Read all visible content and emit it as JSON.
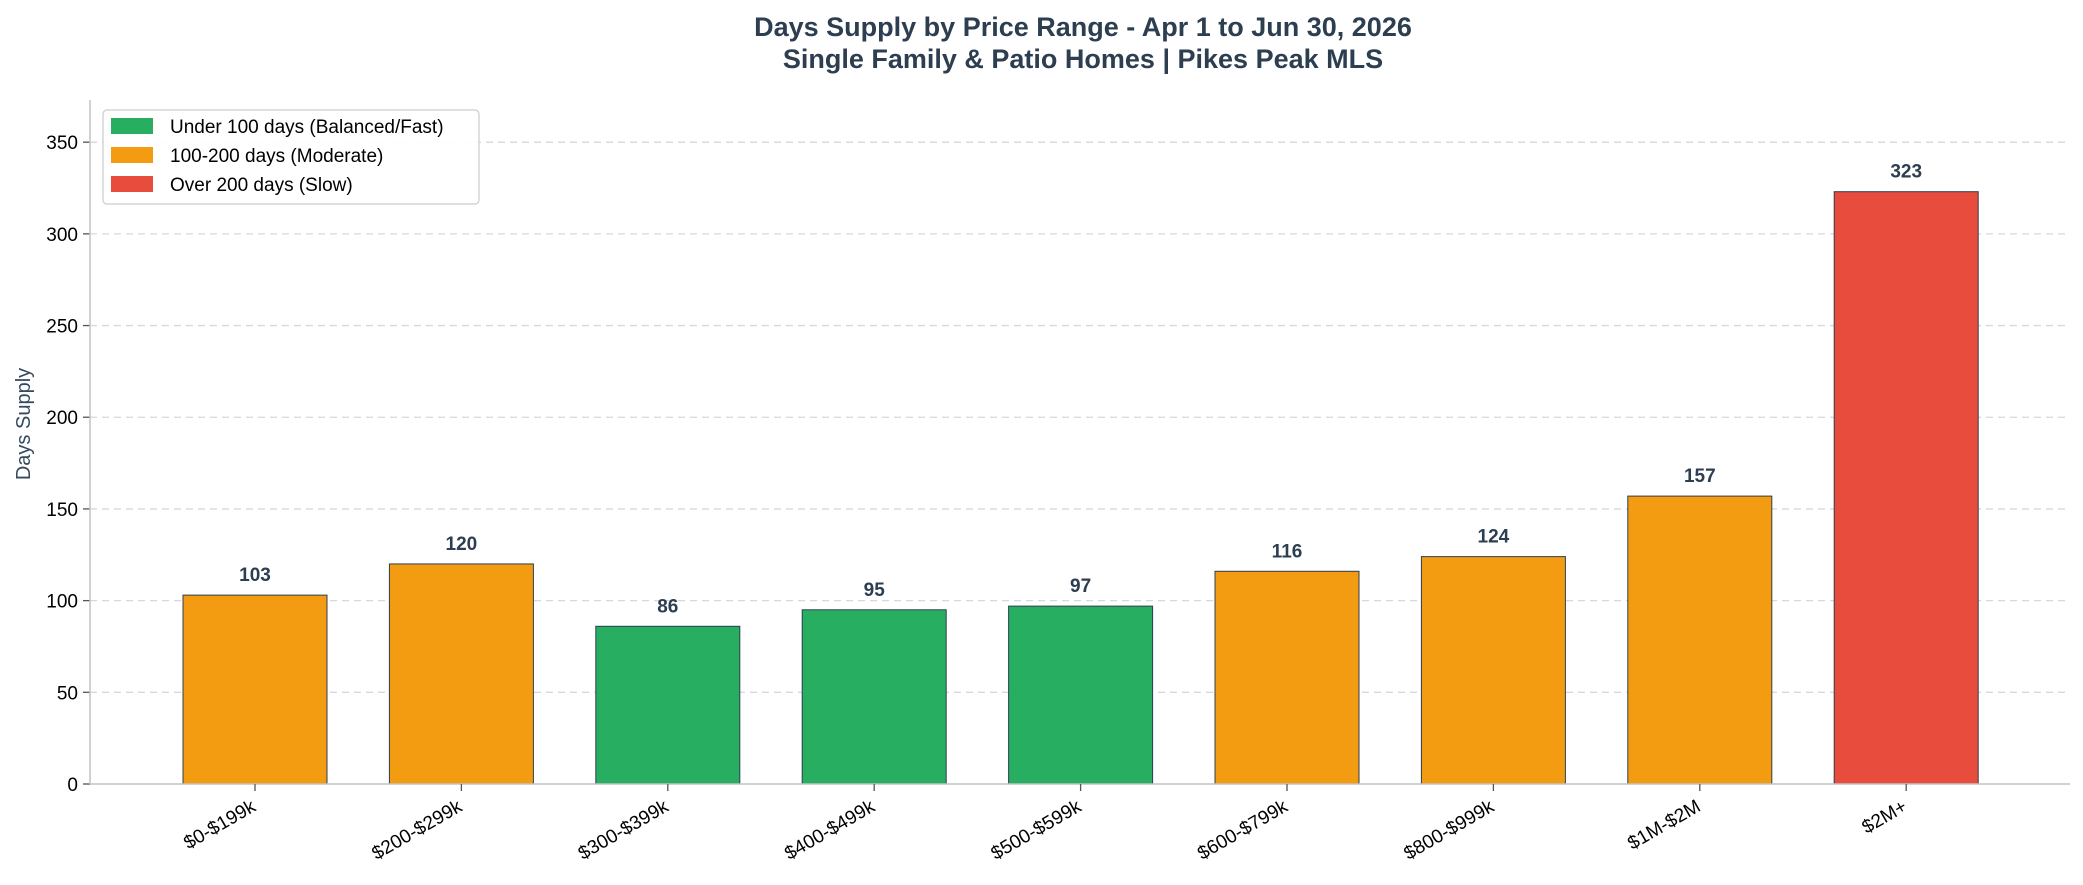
{
  "chart_data": {
    "type": "bar",
    "title": "Days Supply by Price Range - Apr 1 to Jun 30, 2026",
    "subtitle": "Single Family & Patio Homes | Pikes Peak MLS",
    "xlabel": "",
    "ylabel": "Days Supply",
    "ylim": [
      0,
      373
    ],
    "yticks": [
      0,
      50,
      100,
      150,
      200,
      250,
      300,
      350
    ],
    "grid": "horizontal, dashed",
    "legend_position": "top-left",
    "categories": [
      "$0-$199k",
      "$200-$299k",
      "$300-$399k",
      "$400-$499k",
      "$500-$599k",
      "$600-$799k",
      "$800-$999k",
      "$1M-$2M",
      "$2M+"
    ],
    "values": [
      103,
      120,
      86,
      95,
      97,
      116,
      124,
      157,
      323
    ],
    "bar_classes": [
      "moderate",
      "moderate",
      "fast",
      "fast",
      "fast",
      "moderate",
      "moderate",
      "moderate",
      "slow"
    ],
    "legend": [
      {
        "key": "fast",
        "label": "Under 100 days (Balanced/Fast)",
        "color": "#27ae60"
      },
      {
        "key": "moderate",
        "label": "100-200 days (Moderate)",
        "color": "#f39c12"
      },
      {
        "key": "slow",
        "label": "Over 200 days (Slow)",
        "color": "#e74c3c"
      }
    ]
  }
}
